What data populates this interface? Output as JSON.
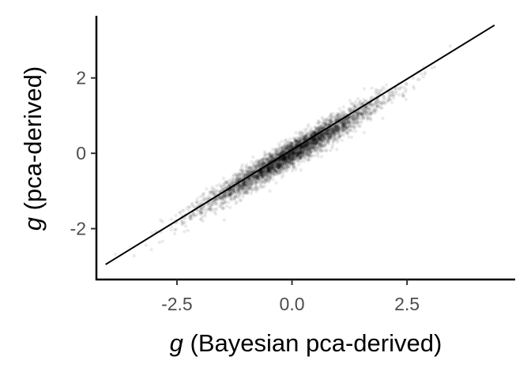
{
  "chart_data": {
    "type": "scatter",
    "title": "",
    "xlabel_var": "g",
    "xlabel_text": " (Bayesian pca-derived)",
    "ylabel_var": "g",
    "ylabel_text": " (pca-derived)",
    "xlim": [
      -4.25,
      4.85
    ],
    "ylim": [
      -3.35,
      3.65
    ],
    "x_ticks": [
      {
        "value": -2.5,
        "label": "-2.5"
      },
      {
        "value": 0.0,
        "label": "0.0"
      },
      {
        "value": 2.5,
        "label": "2.5"
      }
    ],
    "y_ticks": [
      {
        "value": -2,
        "label": "-2"
      },
      {
        "value": 0,
        "label": "0"
      },
      {
        "value": 2,
        "label": "2"
      }
    ],
    "grid": false,
    "legend": "none",
    "point_color": "#000000",
    "point_opacity": 0.08,
    "line_color": "#000000",
    "fit_line": {
      "x": [
        -4.05,
        4.4
      ],
      "y": [
        -2.95,
        3.4
      ]
    },
    "points": {
      "approx_count": 4000,
      "x_center": 0.0,
      "x_sd": 0.95,
      "slope": 0.72,
      "intercept": 0.0,
      "residual_sd": 0.17
    }
  }
}
